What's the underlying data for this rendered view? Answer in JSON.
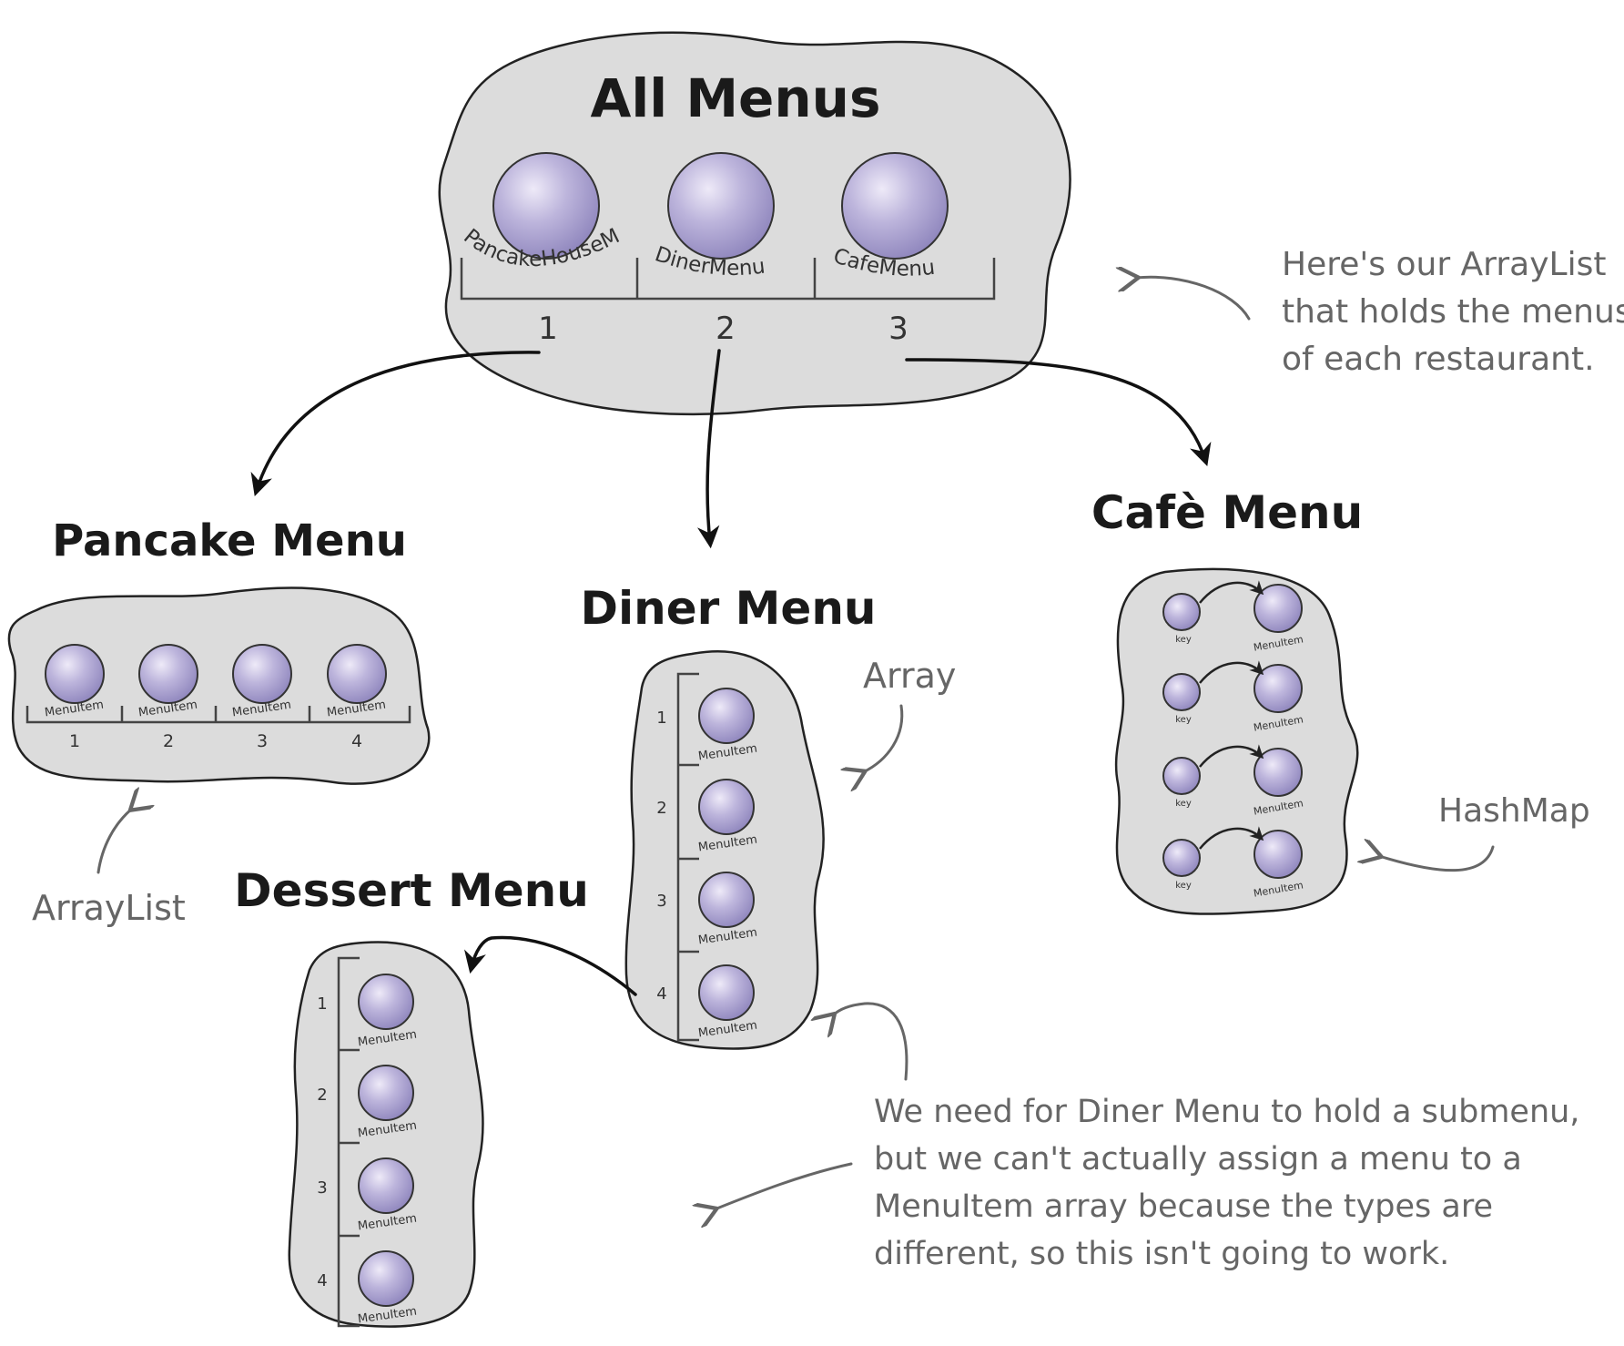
{
  "colors": {
    "blob_fill": "#dcdcdc",
    "orb_fill": "#b7b0d6",
    "dark_ink": "#111111",
    "grey_ink": "#666666"
  },
  "all_menus": {
    "title": "All Menus",
    "items": [
      {
        "label": "PancakeHouseMenu",
        "index": "1"
      },
      {
        "label": "DinerMenu",
        "index": "2"
      },
      {
        "label": "CafeMenu",
        "index": "3"
      }
    ]
  },
  "pancake_menu": {
    "title": "Pancake Menu",
    "items": [
      {
        "label": "MenuItem",
        "index": "1"
      },
      {
        "label": "MenuItem",
        "index": "2"
      },
      {
        "label": "MenuItem",
        "index": "3"
      },
      {
        "label": "MenuItem",
        "index": "4"
      }
    ]
  },
  "diner_menu": {
    "title": "Diner Menu",
    "items": [
      {
        "label": "MenuItem",
        "index": "1"
      },
      {
        "label": "MenuItem",
        "index": "2"
      },
      {
        "label": "MenuItem",
        "index": "3"
      },
      {
        "label": "MenuItem",
        "index": "4"
      }
    ]
  },
  "cafe_menu": {
    "title": "Cafè Menu",
    "rows": [
      {
        "key": "key",
        "value": "MenuItem"
      },
      {
        "key": "key",
        "value": "MenuItem"
      },
      {
        "key": "key",
        "value": "MenuItem"
      },
      {
        "key": "key",
        "value": "MenuItem"
      }
    ]
  },
  "dessert_menu": {
    "title": "Dessert Menu",
    "items": [
      {
        "label": "MenuItem",
        "index": "1"
      },
      {
        "label": "MenuItem",
        "index": "2"
      },
      {
        "label": "MenuItem",
        "index": "3"
      },
      {
        "label": "MenuItem",
        "index": "4"
      }
    ]
  },
  "annotations": {
    "arraylist_note": [
      "Here's our ArrayList",
      "that holds the menus",
      "of each restaurant."
    ],
    "array_label": "Array",
    "hashmap_label": "HashMap",
    "arraylist_label": "ArrayList",
    "problem_note": [
      "We need for Diner Menu to hold a submenu,",
      "but we can't actually assign a menu to a",
      "MenuItem array because the types are",
      "different, so this isn't going to work."
    ]
  }
}
